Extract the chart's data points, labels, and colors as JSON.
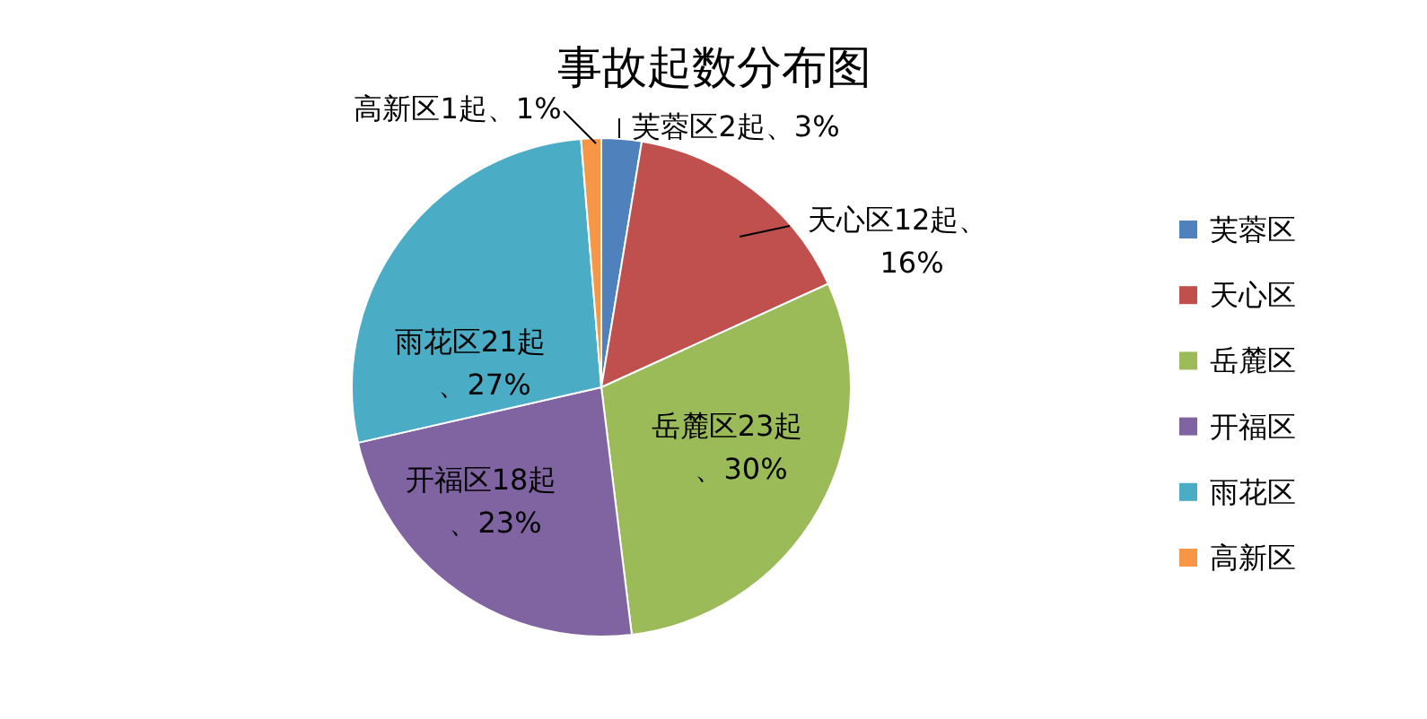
{
  "chart_data": {
    "type": "pie",
    "title": "事故起数分布图",
    "categories": [
      "芙蓉区",
      "天心区",
      "岳麓区",
      "开福区",
      "雨花区",
      "高新区"
    ],
    "values": [
      2,
      12,
      23,
      18,
      21,
      1
    ],
    "colors": [
      "#4f81bd",
      "#c0504d",
      "#9bbb59",
      "#8064a2",
      "#4bacc6",
      "#f79646"
    ],
    "value_labels": [
      "芙蓉区2起、3%",
      "天心区12起、16%",
      "岳麓区23起、30%",
      "开福区18起、23%",
      "雨花区21起、27%",
      "高新区1起、1%"
    ],
    "legend": "right"
  }
}
